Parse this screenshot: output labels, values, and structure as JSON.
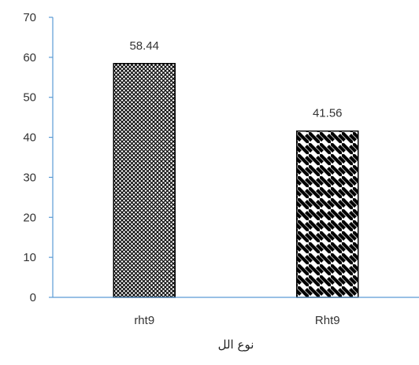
{
  "chart_data": {
    "type": "bar",
    "categories": [
      "rht9",
      "Rht9"
    ],
    "values": [
      58.44,
      41.56
    ],
    "data_labels": [
      "58.44",
      "41.56"
    ],
    "xlabel": "نوع الل",
    "ylabel": "",
    "ylim": [
      0,
      70
    ],
    "yticks": [
      "0",
      "10",
      "20",
      "30",
      "40",
      "50",
      "60",
      "70"
    ],
    "grid": false,
    "legend": "none",
    "bar_patterns": [
      "crosshatch",
      "diagonal-stripes"
    ],
    "colors": {
      "axis_line": "#5b9bd5",
      "bar_outline": "#000000",
      "bar_pattern": "#000000",
      "bar_background": "#ffffff",
      "text": "#333333"
    }
  }
}
